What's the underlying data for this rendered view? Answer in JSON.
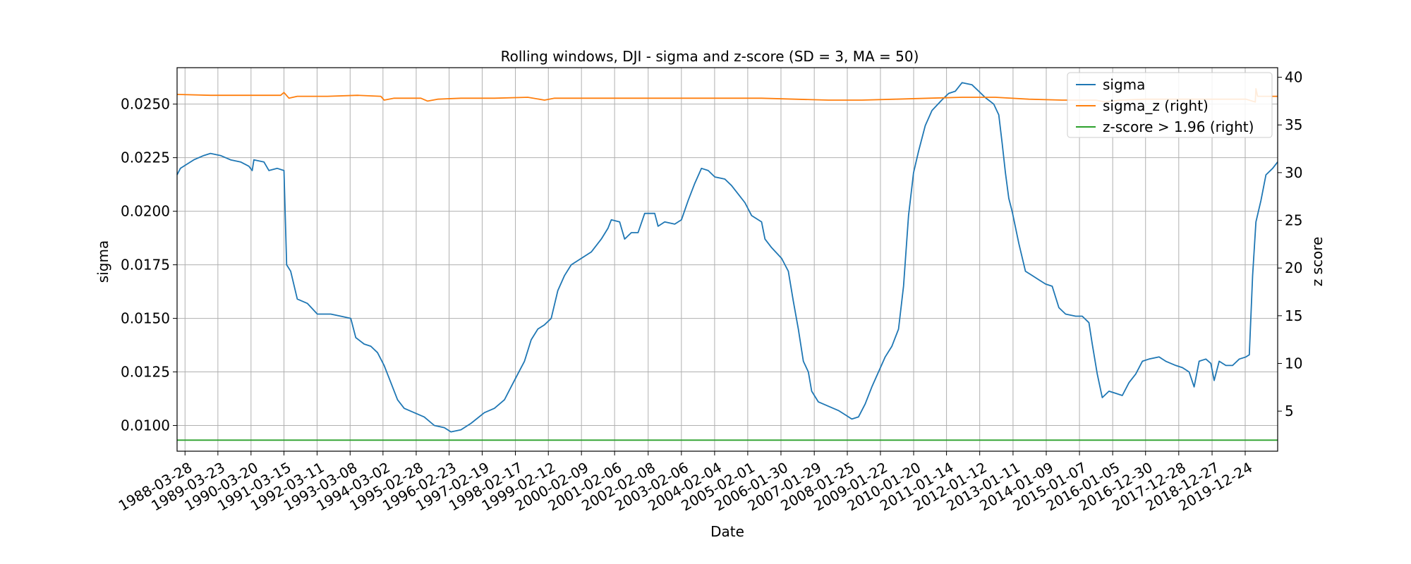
{
  "chart_data": {
    "type": "line",
    "title": "Rolling windows, DJI - sigma and z-score (SD = 3, MA = 50)",
    "xlabel": "Date",
    "ylabel": "sigma",
    "ylabel_right": "z score",
    "x_tick_labels": [
      "1988-03-28",
      "1989-03-23",
      "1990-03-20",
      "1991-03-15",
      "1992-03-11",
      "1993-03-08",
      "1994-03-02",
      "1995-02-28",
      "1996-02-23",
      "1997-02-19",
      "1998-02-17",
      "1999-02-12",
      "2000-02-09",
      "2001-02-06",
      "2002-02-08",
      "2003-02-06",
      "2004-02-04",
      "2005-02-01",
      "2006-01-30",
      "2007-01-29",
      "2008-01-25",
      "2009-01-22",
      "2010-01-20",
      "2011-01-14",
      "2012-01-12",
      "2013-01-11",
      "2014-01-09",
      "2015-01-07",
      "2016-01-05",
      "2016-12-30",
      "2017-12-28",
      "2018-12-27",
      "2019-12-24"
    ],
    "xlim": [
      1988.0,
      2020.95
    ],
    "ylim": [
      0.0088,
      0.0267
    ],
    "ylim_right": [
      0.8,
      41.0
    ],
    "y_ticks": [
      "0.0100",
      "0.0125",
      "0.0150",
      "0.0175",
      "0.0200",
      "0.0225",
      "0.0250"
    ],
    "y_ticks_right": [
      "5",
      "10",
      "15",
      "20",
      "25",
      "30",
      "35",
      "40"
    ],
    "grid": true,
    "legend_position": "top-right",
    "series": [
      {
        "name": "sigma",
        "axis": "left",
        "color": "#1f77b4",
        "points": [
          [
            1988.0,
            0.0217
          ],
          [
            1988.1,
            0.022
          ],
          [
            1988.3,
            0.0222
          ],
          [
            1988.5,
            0.0224
          ],
          [
            1988.8,
            0.0226
          ],
          [
            1989.0,
            0.0227
          ],
          [
            1989.3,
            0.0226
          ],
          [
            1989.6,
            0.0224
          ],
          [
            1989.9,
            0.0223
          ],
          [
            1990.15,
            0.0221
          ],
          [
            1990.25,
            0.0219
          ],
          [
            1990.3,
            0.0224
          ],
          [
            1990.6,
            0.0223
          ],
          [
            1990.75,
            0.0219
          ],
          [
            1991.0,
            0.022
          ],
          [
            1991.2,
            0.0219
          ],
          [
            1991.28,
            0.0175
          ],
          [
            1991.4,
            0.0172
          ],
          [
            1991.6,
            0.0159
          ],
          [
            1991.9,
            0.0157
          ],
          [
            1992.2,
            0.0152
          ],
          [
            1992.6,
            0.0152
          ],
          [
            1992.9,
            0.0151
          ],
          [
            1993.2,
            0.015
          ],
          [
            1993.35,
            0.0141
          ],
          [
            1993.6,
            0.0138
          ],
          [
            1993.8,
            0.0137
          ],
          [
            1994.0,
            0.0134
          ],
          [
            1994.2,
            0.0128
          ],
          [
            1994.4,
            0.012
          ],
          [
            1994.6,
            0.0112
          ],
          [
            1994.8,
            0.0108
          ],
          [
            1995.1,
            0.0106
          ],
          [
            1995.4,
            0.0104
          ],
          [
            1995.7,
            0.01
          ],
          [
            1996.0,
            0.0099
          ],
          [
            1996.2,
            0.0097
          ],
          [
            1996.5,
            0.0098
          ],
          [
            1996.8,
            0.0101
          ],
          [
            1997.2,
            0.0106
          ],
          [
            1997.5,
            0.0108
          ],
          [
            1997.8,
            0.0112
          ],
          [
            1998.0,
            0.0118
          ],
          [
            1998.2,
            0.0124
          ],
          [
            1998.4,
            0.013
          ],
          [
            1998.6,
            0.014
          ],
          [
            1998.8,
            0.0145
          ],
          [
            1999.0,
            0.0147
          ],
          [
            1999.2,
            0.015
          ],
          [
            1999.4,
            0.0163
          ],
          [
            1999.6,
            0.017
          ],
          [
            1999.8,
            0.0175
          ],
          [
            2000.1,
            0.0178
          ],
          [
            2000.4,
            0.0181
          ],
          [
            2000.7,
            0.0187
          ],
          [
            2000.9,
            0.0192
          ],
          [
            2001.0,
            0.0196
          ],
          [
            2001.25,
            0.0195
          ],
          [
            2001.4,
            0.0187
          ],
          [
            2001.6,
            0.019
          ],
          [
            2001.8,
            0.019
          ],
          [
            2002.0,
            0.0199
          ],
          [
            2002.3,
            0.0199
          ],
          [
            2002.4,
            0.0193
          ],
          [
            2002.6,
            0.0195
          ],
          [
            2002.9,
            0.0194
          ],
          [
            2003.1,
            0.0196
          ],
          [
            2003.3,
            0.0205
          ],
          [
            2003.5,
            0.0213
          ],
          [
            2003.7,
            0.022
          ],
          [
            2003.9,
            0.0219
          ],
          [
            2004.1,
            0.0216
          ],
          [
            2004.4,
            0.0215
          ],
          [
            2004.6,
            0.0212
          ],
          [
            2004.8,
            0.0208
          ],
          [
            2005.0,
            0.0204
          ],
          [
            2005.2,
            0.0198
          ],
          [
            2005.5,
            0.0195
          ],
          [
            2005.6,
            0.0187
          ],
          [
            2005.8,
            0.0183
          ],
          [
            2006.1,
            0.0178
          ],
          [
            2006.3,
            0.0172
          ],
          [
            2006.45,
            0.0158
          ],
          [
            2006.6,
            0.0145
          ],
          [
            2006.75,
            0.013
          ],
          [
            2006.9,
            0.0125
          ],
          [
            2007.0,
            0.0116
          ],
          [
            2007.2,
            0.0111
          ],
          [
            2007.5,
            0.0109
          ],
          [
            2007.8,
            0.0107
          ],
          [
            2008.0,
            0.0105
          ],
          [
            2008.2,
            0.0103
          ],
          [
            2008.4,
            0.0104
          ],
          [
            2008.6,
            0.011
          ],
          [
            2008.8,
            0.0118
          ],
          [
            2009.0,
            0.0125
          ],
          [
            2009.2,
            0.0132
          ],
          [
            2009.4,
            0.0137
          ],
          [
            2009.6,
            0.0145
          ],
          [
            2009.75,
            0.0165
          ],
          [
            2009.9,
            0.0198
          ],
          [
            2010.05,
            0.0218
          ],
          [
            2010.2,
            0.0228
          ],
          [
            2010.4,
            0.024
          ],
          [
            2010.6,
            0.0247
          ],
          [
            2010.9,
            0.0252
          ],
          [
            2011.1,
            0.0255
          ],
          [
            2011.3,
            0.0256
          ],
          [
            2011.5,
            0.026
          ],
          [
            2011.8,
            0.0259
          ],
          [
            2012.0,
            0.0256
          ],
          [
            2012.2,
            0.0253
          ],
          [
            2012.45,
            0.025
          ],
          [
            2012.6,
            0.0245
          ],
          [
            2012.7,
            0.0232
          ],
          [
            2012.8,
            0.0218
          ],
          [
            2012.9,
            0.0206
          ],
          [
            2013.0,
            0.02
          ],
          [
            2013.2,
            0.0185
          ],
          [
            2013.4,
            0.0172
          ],
          [
            2013.6,
            0.017
          ],
          [
            2013.8,
            0.0168
          ],
          [
            2014.0,
            0.0166
          ],
          [
            2014.2,
            0.0165
          ],
          [
            2014.4,
            0.0155
          ],
          [
            2014.6,
            0.0152
          ],
          [
            2014.9,
            0.0151
          ],
          [
            2015.1,
            0.0151
          ],
          [
            2015.3,
            0.0148
          ],
          [
            2015.4,
            0.0138
          ],
          [
            2015.55,
            0.0124
          ],
          [
            2015.7,
            0.0113
          ],
          [
            2015.9,
            0.0116
          ],
          [
            2016.1,
            0.0115
          ],
          [
            2016.3,
            0.0114
          ],
          [
            2016.5,
            0.012
          ],
          [
            2016.7,
            0.0124
          ],
          [
            2016.9,
            0.013
          ],
          [
            2017.1,
            0.0131
          ],
          [
            2017.4,
            0.0132
          ],
          [
            2017.6,
            0.013
          ],
          [
            2017.9,
            0.0128
          ],
          [
            2018.1,
            0.0127
          ],
          [
            2018.3,
            0.0125
          ],
          [
            2018.45,
            0.0118
          ],
          [
            2018.6,
            0.013
          ],
          [
            2018.8,
            0.0131
          ],
          [
            2018.95,
            0.0129
          ],
          [
            2019.05,
            0.0121
          ],
          [
            2019.2,
            0.013
          ],
          [
            2019.4,
            0.0128
          ],
          [
            2019.6,
            0.0128
          ],
          [
            2019.8,
            0.0131
          ],
          [
            2020.0,
            0.0132
          ],
          [
            2020.1,
            0.0133
          ],
          [
            2020.2,
            0.017
          ],
          [
            2020.3,
            0.0195
          ],
          [
            2020.45,
            0.0205
          ],
          [
            2020.6,
            0.0217
          ],
          [
            2020.8,
            0.022
          ],
          [
            2020.95,
            0.0223
          ]
        ]
      },
      {
        "name": "sigma_z (right)",
        "axis": "right",
        "color": "#ff7f0e",
        "points": [
          [
            1988.0,
            38.2
          ],
          [
            1989.0,
            38.1
          ],
          [
            1990.0,
            38.1
          ],
          [
            1991.1,
            38.1
          ],
          [
            1991.2,
            38.4
          ],
          [
            1991.35,
            37.8
          ],
          [
            1991.6,
            38.0
          ],
          [
            1992.5,
            38.0
          ],
          [
            1993.4,
            38.1
          ],
          [
            1994.1,
            38.0
          ],
          [
            1994.2,
            37.6
          ],
          [
            1994.5,
            37.8
          ],
          [
            1995.3,
            37.8
          ],
          [
            1995.5,
            37.5
          ],
          [
            1995.8,
            37.7
          ],
          [
            1996.5,
            37.8
          ],
          [
            1997.5,
            37.8
          ],
          [
            1998.5,
            37.9
          ],
          [
            1999.0,
            37.6
          ],
          [
            1999.3,
            37.8
          ],
          [
            2000.5,
            37.8
          ],
          [
            2001.5,
            37.8
          ],
          [
            2002.5,
            37.8
          ],
          [
            2003.5,
            37.8
          ],
          [
            2004.5,
            37.8
          ],
          [
            2005.5,
            37.8
          ],
          [
            2006.5,
            37.7
          ],
          [
            2007.5,
            37.6
          ],
          [
            2008.5,
            37.6
          ],
          [
            2009.5,
            37.7
          ],
          [
            2010.5,
            37.8
          ],
          [
            2011.5,
            37.9
          ],
          [
            2012.5,
            37.9
          ],
          [
            2013.5,
            37.7
          ],
          [
            2014.5,
            37.6
          ],
          [
            2015.5,
            37.6
          ],
          [
            2015.8,
            37.4
          ],
          [
            2016.2,
            37.6
          ],
          [
            2017.0,
            37.7
          ],
          [
            2018.0,
            37.7
          ],
          [
            2019.0,
            37.7
          ],
          [
            2020.0,
            37.7
          ],
          [
            2020.28,
            37.4
          ],
          [
            2020.3,
            38.8
          ],
          [
            2020.35,
            38.0
          ],
          [
            2020.95,
            38.0
          ]
        ]
      },
      {
        "name": "z-score > 1.96 (right)",
        "axis": "right",
        "color": "#2ca02c",
        "points": [
          [
            1988.0,
            1.96
          ],
          [
            2020.95,
            1.96
          ]
        ]
      }
    ]
  }
}
